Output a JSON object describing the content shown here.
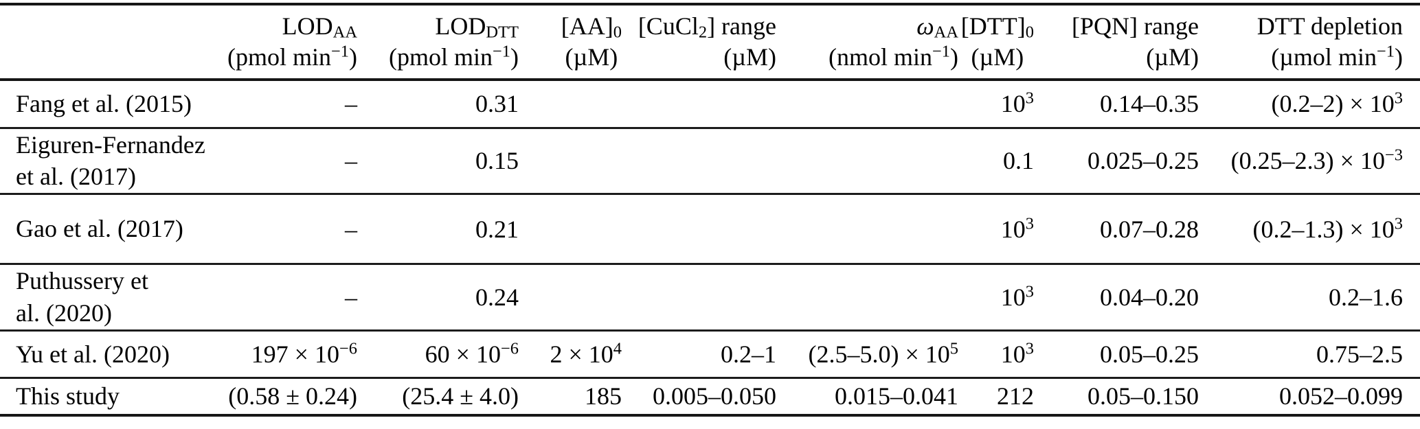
{
  "table": {
    "headers": [
      {
        "title": "",
        "unit": ""
      },
      {
        "title": "LOD_{AA}",
        "unit": "(pmol min^{−1})"
      },
      {
        "title": "LOD_{DTT}",
        "unit": "(pmol min^{−1})"
      },
      {
        "title": "[AA]_{0}",
        "unit": "(µM)"
      },
      {
        "title": "[CuCl_{2}] range",
        "unit": "(µM)"
      },
      {
        "title": "/{ω}_{AA}",
        "unit": "(nmol min^{−1})"
      },
      {
        "title": "[DTT]_{0}",
        "unit": "(µM)"
      },
      {
        "title": "[PQN] range",
        "unit": "(µM)"
      },
      {
        "title": "DTT depletion",
        "unit": "(µmol min^{−1})"
      }
    ],
    "rows": [
      {
        "label": "Fang et al. (2015)",
        "cells": [
          "–",
          "0.31",
          "",
          "",
          "",
          "10^{3}",
          "0.14–0.35",
          "(0.2–2) × 10^{3}"
        ]
      },
      {
        "label": "Eiguren-Fernandez\net al. (2017)",
        "cells": [
          "–",
          "0.15",
          "",
          "",
          "",
          "0.1",
          "0.025–0.25",
          "(0.25–2.3) × 10^{−3}"
        ]
      },
      {
        "label": "Gao et al. (2017)",
        "cells": [
          "–",
          "0.21",
          "",
          "",
          "",
          "10^{3}",
          "0.07–0.28",
          "(0.2–1.3) × 10^{3}"
        ]
      },
      {
        "label": "Puthussery et\nal. (2020)",
        "cells": [
          "–",
          "0.24",
          "",
          "",
          "",
          "10^{3}",
          "0.04–0.20",
          "0.2–1.6"
        ]
      },
      {
        "label": "Yu et al. (2020)",
        "cells": [
          "197 × 10^{−6}",
          "60 × 10^{−6}",
          "2 × 10^{4}",
          "0.2–1",
          "(2.5–5.0) × 10^{5}",
          "10^{3}",
          "0.05–0.25",
          "0.75–2.5"
        ]
      },
      {
        "label": "This study",
        "cells": [
          "(0.58 ± 0.24)",
          "(25.4 ± 4.0)",
          "185",
          "0.005–0.050",
          "0.015–0.041",
          "212",
          "0.05–0.150",
          "0.052–0.099"
        ]
      }
    ]
  }
}
